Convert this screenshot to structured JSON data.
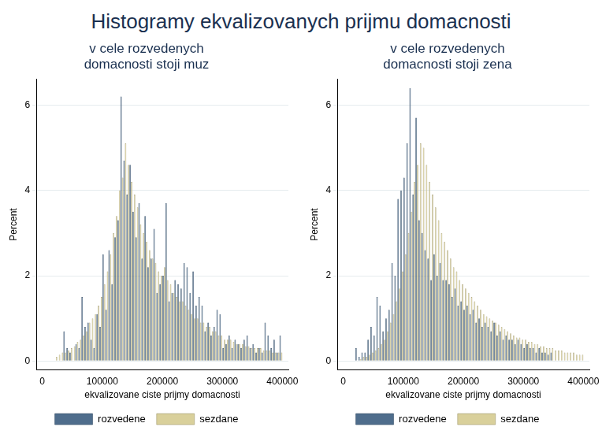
{
  "title": "Histogramy ekvalizovanych prijmu domacnosti",
  "chart_data": [
    {
      "type": "histogram",
      "title": [
        "v cele rozvedenych",
        "domacnosti stoji muz"
      ],
      "x_label": "ekvalizovane ciste prijmy domacnosti",
      "y_label": "Percent",
      "bins": [
        20000,
        25000,
        30000,
        35000,
        40000,
        45000,
        50000,
        55000,
        60000,
        65000,
        70000,
        75000,
        80000,
        85000,
        90000,
        95000,
        100000,
        105000,
        110000,
        115000,
        120000,
        125000,
        130000,
        135000,
        140000,
        145000,
        150000,
        155000,
        160000,
        165000,
        170000,
        175000,
        180000,
        185000,
        190000,
        195000,
        200000,
        205000,
        210000,
        215000,
        220000,
        225000,
        230000,
        235000,
        240000,
        245000,
        250000,
        255000,
        260000,
        265000,
        270000,
        275000,
        280000,
        285000,
        290000,
        295000,
        300000,
        305000,
        310000,
        315000,
        320000,
        325000,
        330000,
        335000,
        340000,
        345000,
        350000,
        355000,
        360000,
        365000,
        370000,
        375000,
        380000,
        385000,
        390000,
        395000,
        400000
      ],
      "series": [
        {
          "name": "rozvedene",
          "color": "#4f6d8c",
          "values": [
            0,
            0,
            0,
            0.7,
            0.3,
            0.2,
            0,
            0.4,
            0.3,
            1.5,
            0.8,
            0.9,
            0.5,
            0.3,
            1.1,
            0.8,
            2.5,
            1.2,
            2.6,
            1.8,
            2.9,
            3.3,
            6.2,
            4.7,
            3.9,
            4.6,
            3.5,
            2.9,
            3.7,
            2.4,
            3.4,
            2.2,
            2.4,
            3.1,
            1.6,
            1.8,
            2.0,
            3.7,
            1.4,
            1.6,
            1.9,
            1.8,
            1.7,
            2.3,
            2.2,
            1.6,
            2.1,
            1.3,
            1.5,
            1.3,
            0.7,
            0.9,
            0.6,
            0.8,
            1.2,
            1.1,
            0.3,
            0.4,
            0.6,
            0.3,
            0.5,
            0.4,
            0.3,
            0.5,
            0.6,
            0.3,
            0.4,
            0.2,
            0.3,
            0.2,
            0.9,
            0.6,
            0.3,
            0.5,
            0.2,
            0.6
          ]
        },
        {
          "name": "sezdane",
          "color": "#d9d09b",
          "values": [
            0.1,
            0.15,
            0.2,
            0.2,
            0.25,
            0.3,
            0.35,
            0.45,
            0.5,
            0.6,
            0.7,
            0.9,
            1.0,
            1.1,
            1.3,
            1.5,
            1.8,
            2.1,
            2.5,
            3.0,
            3.4,
            4.0,
            4.3,
            5.1,
            4.6,
            4.2,
            3.9,
            3.6,
            3.2,
            3.0,
            2.8,
            2.6,
            2.4,
            2.3,
            2.1,
            2.0,
            2.2,
            1.9,
            1.8,
            1.6,
            1.5,
            1.4,
            1.4,
            1.3,
            1.2,
            1.1,
            1.0,
            1.0,
            0.9,
            0.9,
            0.8,
            0.8,
            0.7,
            0.7,
            0.6,
            0.6,
            0.5,
            0.5,
            0.5,
            0.45,
            0.4,
            0.4,
            0.4,
            0.35,
            0.35,
            0.3,
            0.3,
            0.3,
            0.3,
            0.25,
            0.25,
            0.25,
            0.2,
            0.2,
            0.2,
            0.2
          ]
        }
      ],
      "xlim": [
        -10000,
        410000
      ],
      "xticks": [
        0,
        100000,
        200000,
        300000,
        400000
      ],
      "ylim": [
        -0.2,
        6.6
      ],
      "yticks": [
        0,
        2,
        4,
        6
      ],
      "grid": true,
      "legend": "bottom"
    },
    {
      "type": "histogram",
      "title": [
        "v cele rozvedenych",
        "domacnosti stoji zena"
      ],
      "x_label": "ekvalizovane ciste prijmy domacnosti",
      "y_label": "Percent",
      "bins": [
        20000,
        25000,
        30000,
        35000,
        40000,
        45000,
        50000,
        55000,
        60000,
        65000,
        70000,
        75000,
        80000,
        85000,
        90000,
        95000,
        100000,
        105000,
        110000,
        115000,
        120000,
        125000,
        130000,
        135000,
        140000,
        145000,
        150000,
        155000,
        160000,
        165000,
        170000,
        175000,
        180000,
        185000,
        190000,
        195000,
        200000,
        205000,
        210000,
        215000,
        220000,
        225000,
        230000,
        235000,
        240000,
        245000,
        250000,
        255000,
        260000,
        265000,
        270000,
        275000,
        280000,
        285000,
        290000,
        295000,
        300000,
        305000,
        310000,
        315000,
        320000,
        325000,
        330000,
        335000,
        340000,
        345000,
        350000,
        355000,
        360000,
        365000,
        370000,
        375000,
        380000,
        385000,
        390000,
        395000,
        400000
      ],
      "series": [
        {
          "name": "rozvedene",
          "color": "#4f6d8c",
          "values": [
            0.3,
            0.1,
            0.2,
            0.2,
            0.5,
            0.8,
            0.6,
            1.5,
            1.3,
            0.7,
            1.0,
            1.2,
            2.3,
            2.0,
            3.8,
            4.0,
            4.3,
            5.1,
            6.4,
            3.9,
            5.7,
            3.3,
            3.0,
            2.6,
            2.4,
            1.9,
            2.5,
            2.0,
            2.3,
            1.9,
            1.9,
            1.8,
            1.5,
            1.7,
            1.3,
            1.4,
            1.2,
            1.3,
            1.1,
            1.2,
            0.9,
            1.0,
            0.8,
            0.9,
            0.8,
            0.7,
            0.9,
            0.6,
            0.7,
            0.5,
            0.6,
            0.5,
            0.5,
            0.4,
            0.5,
            0.4,
            0.3,
            0.4,
            0.3,
            0.3,
            0.2,
            0.3,
            0.2,
            0.2,
            0.15,
            0.2,
            0,
            0,
            0,
            0,
            0,
            0,
            0,
            0,
            0,
            0
          ]
        },
        {
          "name": "sezdane",
          "color": "#d9d09b",
          "values": [
            0,
            0.05,
            0.1,
            0.1,
            0.15,
            0.2,
            0.25,
            0.3,
            0.4,
            0.5,
            0.7,
            0.9,
            1.1,
            1.4,
            1.7,
            2.1,
            2.5,
            3.0,
            3.5,
            4.2,
            4.6,
            5.1,
            5.0,
            4.6,
            4.2,
            3.9,
            3.6,
            3.3,
            3.0,
            2.8,
            2.6,
            2.4,
            2.2,
            2.1,
            1.9,
            1.8,
            1.7,
            1.6,
            1.5,
            1.4,
            1.3,
            1.2,
            1.1,
            1.05,
            1.0,
            0.95,
            0.9,
            0.85,
            0.8,
            0.75,
            0.7,
            0.65,
            0.6,
            0.55,
            0.55,
            0.5,
            0.5,
            0.45,
            0.45,
            0.4,
            0.4,
            0.35,
            0.35,
            0.3,
            0.3,
            0.3,
            0.25,
            0.25,
            0.25,
            0.2,
            0.2,
            0.2,
            0.2,
            0.15,
            0.15,
            0.15
          ]
        }
      ],
      "xlim": [
        -10000,
        410000
      ],
      "xticks": [
        0,
        100000,
        200000,
        300000,
        400000
      ],
      "ylim": [
        -0.2,
        6.6
      ],
      "yticks": [
        0,
        2,
        4,
        6
      ],
      "grid": true,
      "legend": "bottom"
    }
  ]
}
